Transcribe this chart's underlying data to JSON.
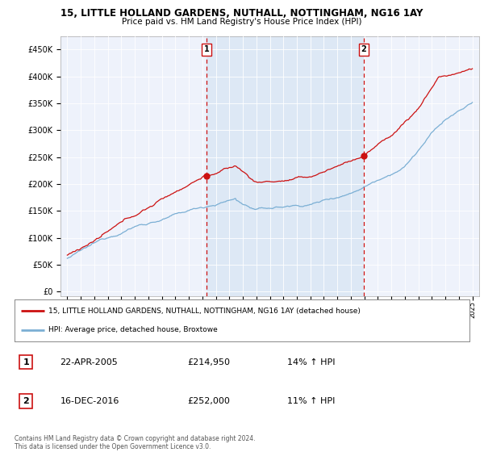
{
  "title_line1": "15, LITTLE HOLLAND GARDENS, NUTHALL, NOTTINGHAM, NG16 1AY",
  "title_line2": "Price paid vs. HM Land Registry's House Price Index (HPI)",
  "ytick_labels": [
    "£0",
    "£50K",
    "£100K",
    "£150K",
    "£200K",
    "£250K",
    "£300K",
    "£350K",
    "£400K",
    "£450K"
  ],
  "ytick_values": [
    0,
    50000,
    100000,
    150000,
    200000,
    250000,
    300000,
    350000,
    400000,
    450000
  ],
  "xtick_years": [
    1995,
    1996,
    1997,
    1998,
    1999,
    2000,
    2001,
    2002,
    2003,
    2004,
    2005,
    2006,
    2007,
    2008,
    2009,
    2010,
    2011,
    2012,
    2013,
    2014,
    2015,
    2016,
    2017,
    2018,
    2019,
    2020,
    2021,
    2022,
    2023,
    2024,
    2025
  ],
  "hpi_color": "#7bafd4",
  "price_color": "#cc1111",
  "vline_color": "#cc1111",
  "shade_color": "#dde8f5",
  "transaction1_date": 2005.31,
  "transaction1_price": 214950,
  "transaction2_date": 2016.96,
  "transaction2_price": 252000,
  "legend_entry1": "15, LITTLE HOLLAND GARDENS, NUTHALL, NOTTINGHAM, NG16 1AY (detached house)",
  "legend_entry2": "HPI: Average price, detached house, Broxtowe",
  "table_row1_num": "1",
  "table_row1_date": "22-APR-2005",
  "table_row1_price": "£214,950",
  "table_row1_hpi": "14% ↑ HPI",
  "table_row2_num": "2",
  "table_row2_date": "16-DEC-2016",
  "table_row2_price": "£252,000",
  "table_row2_hpi": "11% ↑ HPI",
  "footer": "Contains HM Land Registry data © Crown copyright and database right 2024.\nThis data is licensed under the Open Government Licence v3.0.",
  "background_color": "#ffffff",
  "plot_bg_color": "#eef2fb"
}
